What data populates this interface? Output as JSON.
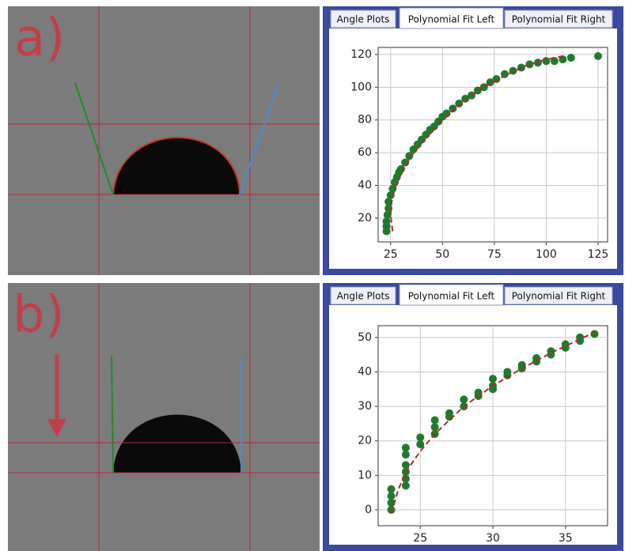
{
  "panels": [
    {
      "label": "a)",
      "tabs": [
        "Angle Plots",
        "Polynomial Fit Left",
        "Polynomial Fit Right"
      ]
    },
    {
      "label": "b)",
      "tabs": [
        "Angle Plots",
        "Polynomial Fit Left",
        "Polynomial Fit Right"
      ]
    }
  ],
  "chart_data": [
    {
      "type": "scatter",
      "xlim": [
        19,
        129.6
      ],
      "ylim": [
        5.5,
        124.3
      ],
      "xticks": [
        25,
        50,
        75,
        100,
        125
      ],
      "yticks": [
        20,
        40,
        60,
        80,
        100,
        120
      ],
      "grid": true,
      "series": [
        {
          "kind": "scatter",
          "color": "#1f7a2e",
          "x": [
            23,
            23,
            23,
            23.5,
            24,
            24,
            25,
            26,
            27,
            28,
            29,
            30,
            32,
            34,
            36,
            38,
            40,
            42,
            44,
            46,
            48,
            50,
            52,
            55,
            58,
            61,
            64,
            67,
            70,
            73,
            76,
            80,
            84,
            88,
            92,
            96,
            100,
            104,
            108,
            112,
            125
          ],
          "values": [
            12,
            15,
            18,
            22,
            26,
            30,
            34,
            38,
            42,
            45,
            48,
            50,
            54,
            58,
            62,
            65,
            68,
            71,
            74,
            76,
            79,
            82,
            84,
            87,
            90,
            93,
            95,
            98,
            100,
            103,
            105,
            108,
            110,
            112,
            114,
            115,
            116,
            116,
            117,
            118,
            119
          ]
        },
        {
          "kind": "line",
          "color": "#b3282d",
          "x": [
            26,
            25,
            25.5,
            27,
            30,
            35,
            40,
            50,
            60,
            70,
            80,
            90,
            100,
            108
          ],
          "values": [
            12,
            22,
            30,
            38,
            47,
            58,
            66,
            80,
            91,
            100,
            107,
            113,
            117,
            119
          ]
        }
      ]
    },
    {
      "type": "scatter",
      "xlim": [
        22.1,
        37.9
      ],
      "ylim": [
        -4.6,
        53.4
      ],
      "xticks": [
        25,
        30,
        35
      ],
      "yticks": [
        0,
        10,
        20,
        30,
        40,
        50
      ],
      "grid": true,
      "series": [
        {
          "kind": "scatter",
          "color": "#1f7a2e",
          "x": [
            23,
            23,
            23,
            23,
            24,
            24,
            24,
            24,
            24,
            24,
            25,
            25,
            26,
            26,
            26,
            27,
            27,
            28,
            28,
            29,
            29,
            30,
            30,
            30,
            31,
            31,
            32,
            32,
            33,
            33,
            34,
            34,
            35,
            35,
            36,
            36,
            37
          ],
          "values": [
            0,
            2,
            4,
            6,
            7,
            9,
            11,
            13,
            16,
            18,
            19,
            21,
            22,
            24,
            26,
            27,
            28,
            30,
            32,
            33,
            34,
            35,
            36,
            38,
            39,
            40,
            41,
            42,
            43,
            44,
            45,
            46,
            47,
            48,
            49,
            50,
            51
          ]
        },
        {
          "kind": "line",
          "color": "#b3282d",
          "x": [
            23,
            23.5,
            24,
            25,
            26,
            27,
            28,
            30,
            32,
            34,
            36,
            37
          ],
          "values": [
            -1,
            6,
            11,
            17,
            22,
            26,
            30,
            36,
            41,
            45.5,
            49.5,
            51.5
          ]
        }
      ]
    }
  ]
}
